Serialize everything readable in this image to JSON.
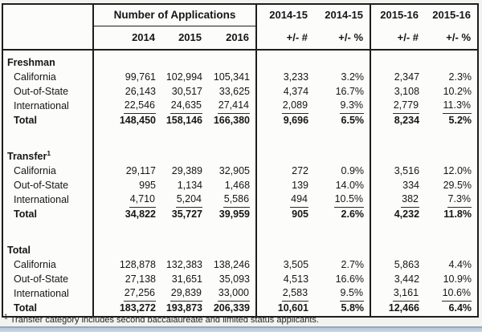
{
  "header": {
    "group_title": "Number of Applications",
    "year_cols": [
      "2014",
      "2015",
      "2016"
    ],
    "change_cols": [
      {
        "year": "2014-15",
        "label": "+/- #"
      },
      {
        "year": "2014-15",
        "label": "+/- %"
      },
      {
        "year": "2015-16",
        "label": "+/- #"
      },
      {
        "year": "2015-16",
        "label": "+/- %"
      }
    ]
  },
  "sections": [
    {
      "title": "Freshman",
      "sup": "",
      "rows": [
        {
          "label": "California",
          "bold": false,
          "underline": false,
          "values": [
            "99,761",
            "102,994",
            "105,341",
            "3,233",
            "3.2%",
            "2,347",
            "2.3%"
          ]
        },
        {
          "label": "Out-of-State",
          "bold": false,
          "underline": false,
          "values": [
            "26,143",
            "30,517",
            "33,625",
            "4,374",
            "16.7%",
            "3,108",
            "10.2%"
          ]
        },
        {
          "label": "International",
          "bold": false,
          "underline": true,
          "values": [
            "22,546",
            "24,635",
            "27,414",
            "2,089",
            "9.3%",
            "2,779",
            "11.3%"
          ]
        },
        {
          "label": "Total",
          "bold": true,
          "underline": false,
          "values": [
            "148,450",
            "158,146",
            "166,380",
            "9,696",
            "6.5%",
            "8,234",
            "5.2%"
          ]
        }
      ]
    },
    {
      "title": "Transfer",
      "sup": "1",
      "rows": [
        {
          "label": "California",
          "bold": false,
          "underline": false,
          "values": [
            "29,117",
            "29,389",
            "32,905",
            "272",
            "0.9%",
            "3,516",
            "12.0%"
          ]
        },
        {
          "label": "Out-of-State",
          "bold": false,
          "underline": false,
          "values": [
            "995",
            "1,134",
            "1,468",
            "139",
            "14.0%",
            "334",
            "29.5%"
          ]
        },
        {
          "label": "International",
          "bold": false,
          "underline": true,
          "values": [
            "4,710",
            "5,204",
            "5,586",
            "494",
            "10.5%",
            "382",
            "7.3%"
          ]
        },
        {
          "label": "Total",
          "bold": true,
          "underline": false,
          "values": [
            "34,822",
            "35,727",
            "39,959",
            "905",
            "2.6%",
            "4,232",
            "11.8%"
          ]
        }
      ]
    },
    {
      "title": "Total",
      "sup": "",
      "rows": [
        {
          "label": "California",
          "bold": false,
          "underline": false,
          "values": [
            "128,878",
            "132,383",
            "138,246",
            "3,505",
            "2.7%",
            "5,863",
            "4.4%"
          ]
        },
        {
          "label": "Out-of-State",
          "bold": false,
          "underline": false,
          "values": [
            "27,138",
            "31,651",
            "35,093",
            "4,513",
            "16.6%",
            "3,442",
            "10.9%"
          ]
        },
        {
          "label": "International",
          "bold": false,
          "underline": true,
          "values": [
            "27,256",
            "29,839",
            "33,000",
            "2,583",
            "9.5%",
            "3,161",
            "10.6%"
          ]
        },
        {
          "label": "Total",
          "bold": true,
          "underline": false,
          "values": [
            "183,272",
            "193,873",
            "206,339",
            "10,601",
            "5.8%",
            "12,466",
            "6.4%"
          ]
        }
      ]
    }
  ],
  "footnote": {
    "sup": "1",
    "text": "Transfer category includes second baccalaureate and limited status applicants."
  },
  "colors": {
    "page_background": "#f3f2ef",
    "table_background": "#fcfcfb",
    "table_border": "#1e1e1e",
    "bottom_bar_fill": "#b8c8d8",
    "bottom_bar_edge": "#8ca3b9"
  }
}
